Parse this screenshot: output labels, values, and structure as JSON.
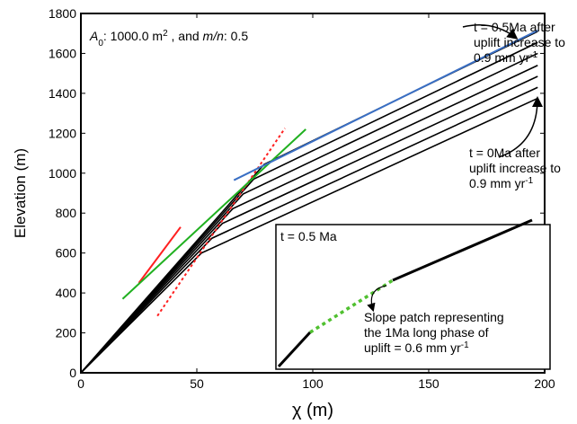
{
  "chart_data": {
    "type": "line",
    "xlabel": "χ (m)",
    "ylabel": "Elevation (m)",
    "xlim": [
      0,
      200
    ],
    "ylim": [
      0,
      1800
    ],
    "xticks": [
      0,
      50,
      100,
      150,
      200
    ],
    "yticks": [
      0,
      200,
      400,
      600,
      800,
      1000,
      1200,
      1400,
      1600,
      1800
    ],
    "series": [
      {
        "color": "#000000",
        "x": [
          0,
          52,
          197
        ],
        "values": [
          0,
          600,
          1375
        ]
      },
      {
        "color": "#000000",
        "x": [
          0,
          56.5,
          197
        ],
        "values": [
          0,
          674,
          1430
        ]
      },
      {
        "color": "#000000",
        "x": [
          0,
          61,
          197
        ],
        "values": [
          0,
          748,
          1485
        ]
      },
      {
        "color": "#000000",
        "x": [
          0,
          65.5,
          197
        ],
        "values": [
          0,
          822,
          1540
        ]
      },
      {
        "color": "#000000",
        "x": [
          0,
          70,
          197
        ],
        "values": [
          0,
          896,
          1600
        ]
      },
      {
        "color": "#000000",
        "x": [
          0,
          74.5,
          197
        ],
        "values": [
          0,
          970,
          1655
        ]
      },
      {
        "color": "#000000",
        "x": [
          0,
          79,
          197
        ],
        "values": [
          0,
          1044,
          1710
        ]
      },
      {
        "color": "#ff2020",
        "x": [
          25,
          43
        ],
        "values": [
          450,
          730
        ]
      },
      {
        "color": "#ff2020",
        "dash": true,
        "x": [
          33,
          88
        ],
        "values": [
          285,
          1225
        ]
      },
      {
        "color": "#20b020",
        "x": [
          18,
          97
        ],
        "values": [
          370,
          1220
        ]
      },
      {
        "color": "#3a6fc4",
        "x": [
          66,
          197
        ],
        "values": [
          965,
          1715
        ]
      }
    ],
    "annotations": [
      {
        "parts": [
          {
            "text": "A",
            "style": "italic"
          },
          {
            "text": "0",
            "style": "sub"
          },
          {
            "text": ": 1000.0 m"
          },
          {
            "text": "2",
            "style": "sup"
          },
          {
            "text": " , and "
          },
          {
            "text": "m/n",
            "style": "italic"
          },
          {
            "text": ": 0.5"
          }
        ]
      },
      {
        "lines": [
          "t = 0.5Ma after",
          "uplift increase to",
          "0.9 mm yr"
        ],
        "sup": "-1"
      },
      {
        "lines": [
          "t = 0Ma after",
          "uplift increase to",
          "0.9 mm yr"
        ],
        "sup": "-1"
      },
      {
        "lines": [
          "t = 0.5 Ma"
        ]
      },
      {
        "lines": [
          "Slope patch representing",
          "the 1Ma long phase of",
          "uplift = 0.6 mm yr"
        ],
        "sup": "-1"
      }
    ]
  }
}
